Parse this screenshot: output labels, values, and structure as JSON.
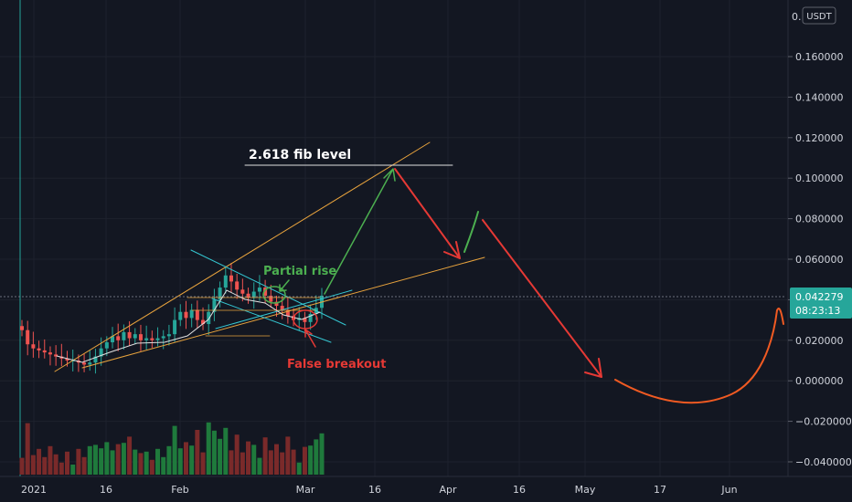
{
  "chart_data": {
    "type": "candlestick",
    "currency_badge": "USDT",
    "top_price_label_partial": "0.",
    "last_price": "0.042279",
    "countdown": "08:23:13",
    "y_ticks": [
      "0.160000",
      "0.140000",
      "0.120000",
      "0.100000",
      "0.080000",
      "0.060000",
      "0.040000",
      "0.020000",
      "0.000000",
      "−0.020000",
      "−0.040000"
    ],
    "y_values": [
      0.16,
      0.14,
      0.12,
      0.1,
      0.08,
      0.06,
      0.04,
      0.02,
      0.0,
      -0.02,
      -0.04
    ],
    "x_ticks": [
      "2021",
      "16",
      "Feb",
      "Mar",
      "16",
      "Apr",
      "16",
      "May",
      "17",
      "Jun"
    ],
    "annotations": {
      "fib": "2.618 fib level",
      "partial": "Partial rise",
      "false_breakout": "False breakout"
    },
    "colors": {
      "background": "#131722",
      "up": "#26a69a",
      "down": "#ef5350",
      "trend_orange": "#e8a33d",
      "channel_cyan": "#34c6d1",
      "green_arrow": "#4caf50",
      "red_arrow": "#e53935",
      "price_badge": "#26a69a"
    },
    "approx_candles_close": [
      0.025,
      0.018,
      0.016,
      0.015,
      0.014,
      0.013,
      0.012,
      0.011,
      0.01,
      0.01,
      0.009,
      0.008,
      0.009,
      0.012,
      0.016,
      0.019,
      0.022,
      0.02,
      0.024,
      0.021,
      0.023,
      0.02,
      0.021,
      0.02,
      0.021,
      0.022,
      0.023,
      0.03,
      0.034,
      0.031,
      0.035,
      0.03,
      0.028,
      0.034,
      0.04,
      0.046,
      0.052,
      0.049,
      0.045,
      0.043,
      0.041,
      0.044,
      0.046,
      0.042,
      0.039,
      0.037,
      0.035,
      0.032,
      0.03,
      0.031,
      0.029,
      0.033,
      0.036,
      0.042
    ]
  }
}
